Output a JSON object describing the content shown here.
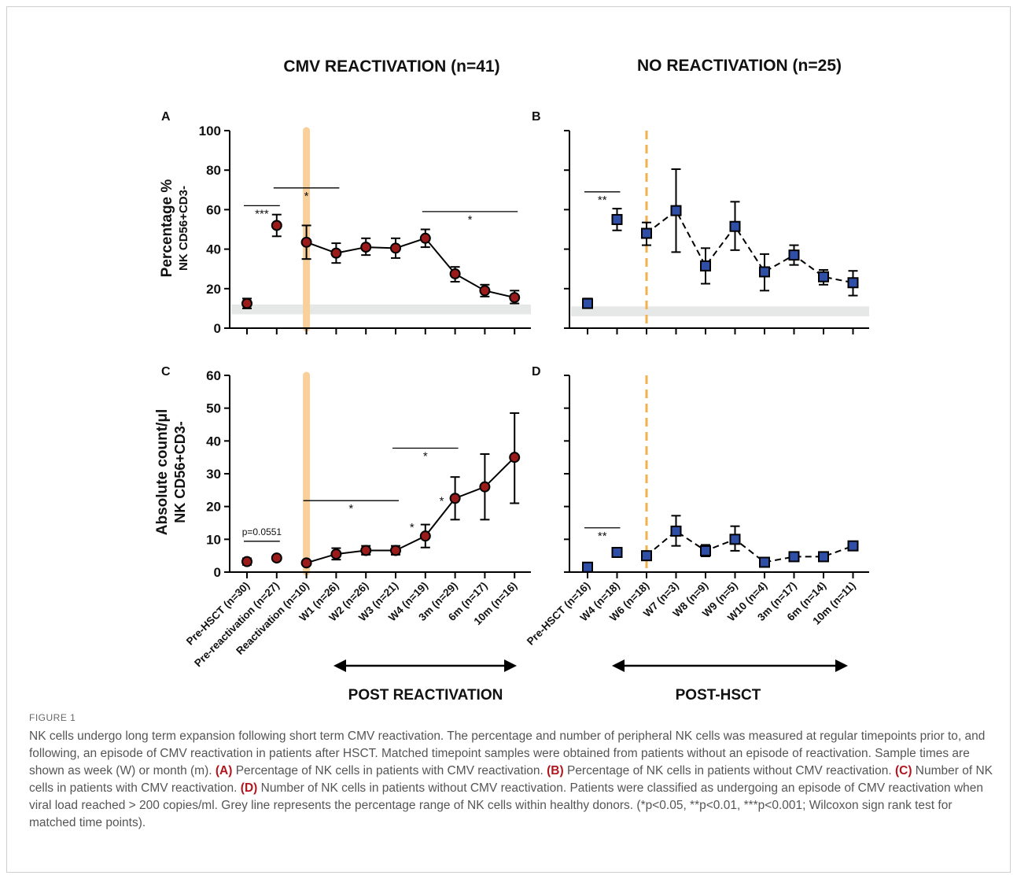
{
  "figure": {
    "label": "FIGURE 1",
    "caption": [
      {
        "t": "NK cells undergo long term expansion following short term CMV reactivation. The percentage and number of peripheral NK cells was measured at regular timepoints prior to, and following, an episode of CMV reactivation in patients after HSCT. Matched timepoint samples were obtained from patients without an episode of reactivation. Sample times are shown as week (W) or month (m). "
      },
      {
        "b": "(A)"
      },
      {
        "t": " Percentage of NK cells in patients with CMV reactivation. "
      },
      {
        "b": "(B)"
      },
      {
        "t": " Percentage of NK cells in patients without CMV reactivation. "
      },
      {
        "b": "(C)"
      },
      {
        "t": " Number of NK cells in patients with CMV reactivation. "
      },
      {
        "b": "(D)"
      },
      {
        "t": " Number of NK cells in patients without CMV reactivation. Patients were classified as undergoing an episode of CMV reactivation when viral load reached > 200 copies/ml. Grey line represents the percentage range of NK cells within healthy donors. (*p<0.05, **p<0.01, ***p<0.001; Wilcoxon sign rank test for matched time points)."
      }
    ]
  },
  "headers": {
    "left": "CMV REACTIVATION (n=41)",
    "right": "NO REACTIVATION (n=25)"
  },
  "bottom_labels": {
    "left": "POST REACTIVATION",
    "right": "POST-HSCT"
  },
  "y_labels": {
    "top": [
      "Percentage %",
      "NK CD56+CD3-"
    ],
    "bottom": [
      "Absolute count/μl",
      "NK CD56+CD3-"
    ]
  },
  "chart_data": [
    {
      "panel": "A",
      "type": "line",
      "line_style": "solid",
      "marker": "circle",
      "marker_color": "#9b1b1b",
      "categories": [
        "Pre-HSCT (n=30)",
        "Pre-reactivation (n=27)",
        "Reactivation (n=10)",
        "W1 (n=26)",
        "W2 (n=26)",
        "W3 (n=21)",
        "W4 (n=19)",
        "3m (n=29)",
        "6m (n=17)",
        "10m (n=16)"
      ],
      "values": [
        12.5,
        52,
        43.5,
        38,
        41,
        40.5,
        45.5,
        27.5,
        19,
        15.5
      ],
      "err_low": [
        10,
        46.5,
        35,
        33,
        37,
        35.5,
        41,
        23.5,
        16,
        12.5
      ],
      "err_high": [
        15,
        57.5,
        52,
        43,
        45.5,
        45.5,
        50,
        31,
        22,
        19
      ],
      "connected_from": 2,
      "reference_band": [
        7,
        12
      ],
      "event_marker": {
        "at": 2,
        "style": "solid-band",
        "color": "#f9d09a"
      },
      "ylim": [
        0,
        100
      ],
      "yticks": [
        0,
        20,
        40,
        60,
        80,
        100
      ],
      "grid": false,
      "significance": [
        {
          "from": 0,
          "to": 1,
          "label": "***",
          "value": 62
        },
        {
          "from": 1,
          "to": 3,
          "label": "*",
          "value": 71
        },
        {
          "from": 6,
          "to": 9,
          "label": "*",
          "value": 59
        }
      ]
    },
    {
      "panel": "B",
      "type": "line",
      "line_style": "dashed",
      "marker": "square",
      "marker_color": "#2f4ea6",
      "categories": [
        "Pre-HSCT (n=16)",
        "W4 (n=18)",
        "W6 (n=18)",
        "W7 (n=3)",
        "W8 (n=9)",
        "W9 (n=5)",
        "W10 (n=4)",
        "3m (n=17)",
        "6m (n=14)",
        "10m (n=11)"
      ],
      "values": [
        12.5,
        55,
        48,
        59.5,
        31.5,
        51.5,
        28.5,
        37,
        26,
        23
      ],
      "err_low": [
        10.5,
        49.5,
        42,
        38.5,
        22.5,
        39.5,
        19,
        32,
        22,
        16.5
      ],
      "err_high": [
        15,
        60.5,
        53.5,
        80.5,
        40.5,
        64,
        37.5,
        42,
        29.5,
        29
      ],
      "connected_from": 2,
      "reference_band": [
        6,
        11
      ],
      "event_marker": {
        "at": 2,
        "style": "dashed-line",
        "color": "#f2b14c"
      },
      "ylim": [
        0,
        100
      ],
      "yticks": [
        0,
        20,
        40,
        60,
        80,
        100
      ],
      "grid": false,
      "significance": [
        {
          "from": 0,
          "to": 1,
          "label": "**",
          "value": 69
        }
      ]
    },
    {
      "panel": "C",
      "type": "line",
      "line_style": "solid",
      "marker": "circle",
      "marker_color": "#9b1b1b",
      "categories": [
        "Pre-HSCT (n=30)",
        "Pre-reactivation (n=27)",
        "Reactivation (n=10)",
        "W1 (n=26)",
        "W2 (n=26)",
        "W3 (n=21)",
        "W4 (n=19)",
        "3m (n=29)",
        "6m (n=17)",
        "10m (n=16)"
      ],
      "values": [
        3.2,
        4.3,
        2.8,
        5.5,
        6.6,
        6.6,
        11,
        22.5,
        26,
        35
      ],
      "err_low": [
        2.2,
        4.3,
        2.8,
        3.8,
        5.3,
        5.3,
        7.5,
        16,
        16,
        21
      ],
      "err_high": [
        4.2,
        4.3,
        2.8,
        7.3,
        8,
        8,
        14.5,
        29,
        36,
        48.5
      ],
      "connected_from": 2,
      "event_marker": {
        "at": 2,
        "style": "solid-band",
        "color": "#f9d09a"
      },
      "ylim": [
        0,
        60
      ],
      "yticks": [
        0,
        10,
        20,
        30,
        40,
        50,
        60
      ],
      "grid": false,
      "significance": [
        {
          "from": 0,
          "to": 1,
          "label": "p=0.0551",
          "value": 9.4,
          "label_above": true
        },
        {
          "from": 2,
          "to": 5,
          "label": "*",
          "value": 21.8
        },
        {
          "from": 5,
          "to": 7,
          "label": "*",
          "value": 37.8
        },
        {
          "point": 6,
          "label": "*",
          "value": 12.5,
          "side": "left"
        },
        {
          "point": 7,
          "label": "*",
          "value": 20.5,
          "side": "left"
        }
      ]
    },
    {
      "panel": "D",
      "type": "line",
      "line_style": "dashed",
      "marker": "square",
      "marker_color": "#2f4ea6",
      "categories": [
        "Pre-HSCT (n=16)",
        "W4 (n=18)",
        "W6 (n=18)",
        "W7 (n=3)",
        "W8 (n=9)",
        "W9 (n=5)",
        "W10 (n=4)",
        "3m (n=17)",
        "6m (n=14)",
        "10m (n=11)"
      ],
      "values": [
        1.5,
        6,
        5,
        12.5,
        6.5,
        10,
        3,
        4.7,
        4.7,
        8
      ],
      "err_low": [
        1.5,
        4.8,
        5,
        8,
        4.8,
        6.5,
        3,
        4.7,
        4.7,
        7.3
      ],
      "err_high": [
        1.5,
        7.2,
        5,
        17.2,
        8.3,
        14,
        3,
        4.7,
        4.7,
        8.7
      ],
      "connected_from": 2,
      "event_marker": {
        "at": 2,
        "style": "dashed-line",
        "color": "#f2b14c"
      },
      "ylim": [
        0,
        60
      ],
      "yticks": [
        0,
        10,
        20,
        30,
        40,
        50,
        60
      ],
      "grid": false,
      "significance": [
        {
          "from": 0,
          "to": 1,
          "label": "**",
          "value": 13.5
        }
      ]
    }
  ]
}
